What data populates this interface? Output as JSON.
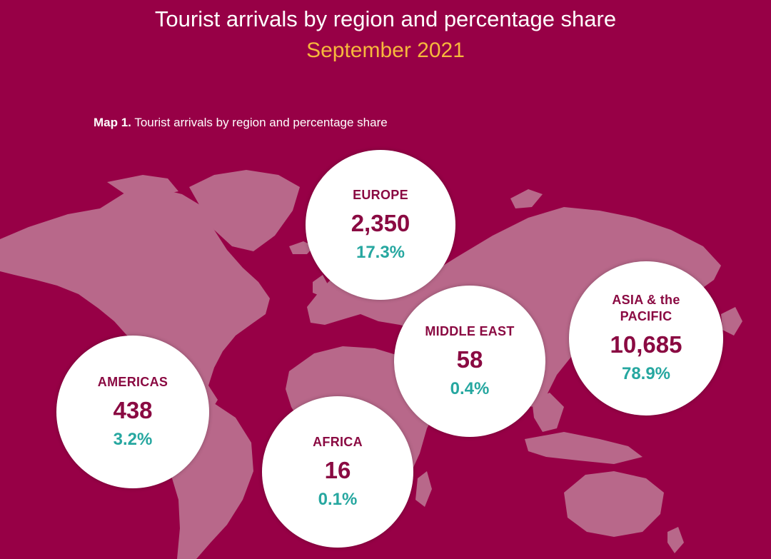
{
  "header": {
    "title": "Tourist arrivals by region and percentage share",
    "subtitle": "September 2021"
  },
  "map_caption": {
    "prefix": "Map 1.",
    "text": "Tourist arrivals by region and percentage share"
  },
  "regions": [
    {
      "label": "EUROPE",
      "arrivals": "2,350",
      "share": "17.3%"
    },
    {
      "label": "AMERICAS",
      "arrivals": "438",
      "share": "3.2%"
    },
    {
      "label": "AFRICA",
      "arrivals": "16",
      "share": "0.1%"
    },
    {
      "label": "MIDDLE EAST",
      "arrivals": "58",
      "share": "0.4%"
    },
    {
      "label": "ASIA & the PACIFIC",
      "arrivals": "10,685",
      "share": "78.9%"
    }
  ],
  "colors": {
    "background": "#970046",
    "land": "#b8688a",
    "title": "#ffffff",
    "subtitle": "#f6b83c",
    "bubble": "#ffffff",
    "region_text": "#8a0a42",
    "share_text": "#26a7a0"
  }
}
